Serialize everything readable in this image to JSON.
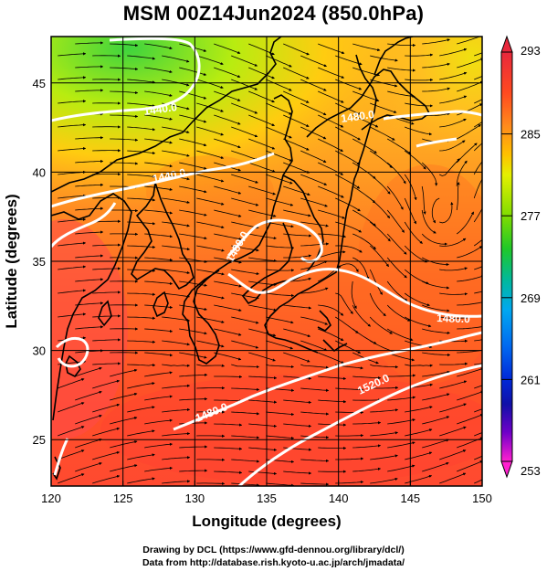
{
  "title": "MSM 00Z14Jun2024 (850.0hPa)",
  "xlabel": "Longitude (degrees)",
  "ylabel": "Latitude  (degrees)",
  "credit_line1": "Drawing by DCL (https://www.gfd-dennou.org/library/dcl/)",
  "credit_line2": "Data from http://database.rish.kyoto-u.ac.jp/arch/jmadata/",
  "map": {
    "lon_range": [
      120,
      150
    ],
    "lat_range": [
      22.4,
      47.6
    ],
    "x_ticks": [
      "120",
      "125",
      "130",
      "135",
      "140",
      "145",
      "150"
    ],
    "y_ticks": [
      "25",
      "30",
      "35",
      "40",
      "45"
    ],
    "contour_labels": [
      "1440.0",
      "1440.0",
      "1480.0",
      "1480.0",
      "1480.0",
      "1520.0",
      "1480.0"
    ],
    "colorbar": {
      "ticks": [
        "293",
        "285",
        "277",
        "269",
        "261",
        "253"
      ],
      "colors": [
        "#d9204a",
        "#ff3a20",
        "#ff6a1c",
        "#ff8f1c",
        "#ffc400",
        "#d8f000",
        "#7cdc00",
        "#20c828",
        "#00b8a0",
        "#00a8ff",
        "#0070f0",
        "#0030d8",
        "#1414b0",
        "#6a00c8",
        "#c000d0",
        "#ff20c8"
      ]
    }
  }
}
